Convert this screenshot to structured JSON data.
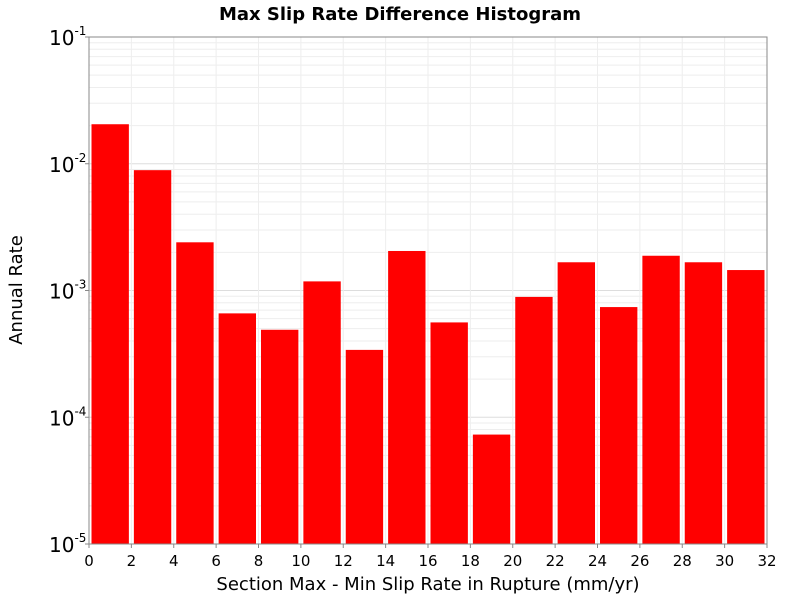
{
  "chart_data": {
    "type": "bar",
    "title": "Max Slip Rate Difference Histogram",
    "xlabel": "Section Max - Min Slip Rate in Rupture (mm/yr)",
    "ylabel": "Annual Rate",
    "xlim": [
      0,
      32
    ],
    "ylim": [
      1e-05,
      0.1
    ],
    "yscale": "log",
    "grid": true,
    "bar_color": "#ff0000",
    "bin_width": 2,
    "bins": [
      1,
      3,
      5,
      7,
      9,
      11,
      13,
      15,
      17,
      19,
      21,
      23,
      25,
      27,
      29,
      31
    ],
    "values": [
      0.0205,
      0.0089,
      0.0024,
      0.00066,
      0.00049,
      0.00118,
      0.00034,
      0.00205,
      0.00056,
      7.3e-05,
      0.00089,
      0.00167,
      0.00074,
      0.00188,
      0.00167,
      0.00145
    ],
    "x_ticks": [
      "0",
      "2",
      "4",
      "6",
      "8",
      "10",
      "12",
      "14",
      "16",
      "18",
      "20",
      "22",
      "24",
      "26",
      "28",
      "30",
      "32"
    ],
    "y_ticks": [
      {
        "base": "10",
        "exp": "-1",
        "value": 0.1
      },
      {
        "base": "10",
        "exp": "-2",
        "value": 0.01
      },
      {
        "base": "10",
        "exp": "-3",
        "value": 0.001
      },
      {
        "base": "10",
        "exp": "-4",
        "value": 0.0001
      },
      {
        "base": "10",
        "exp": "-5",
        "value": 1e-05
      }
    ]
  }
}
